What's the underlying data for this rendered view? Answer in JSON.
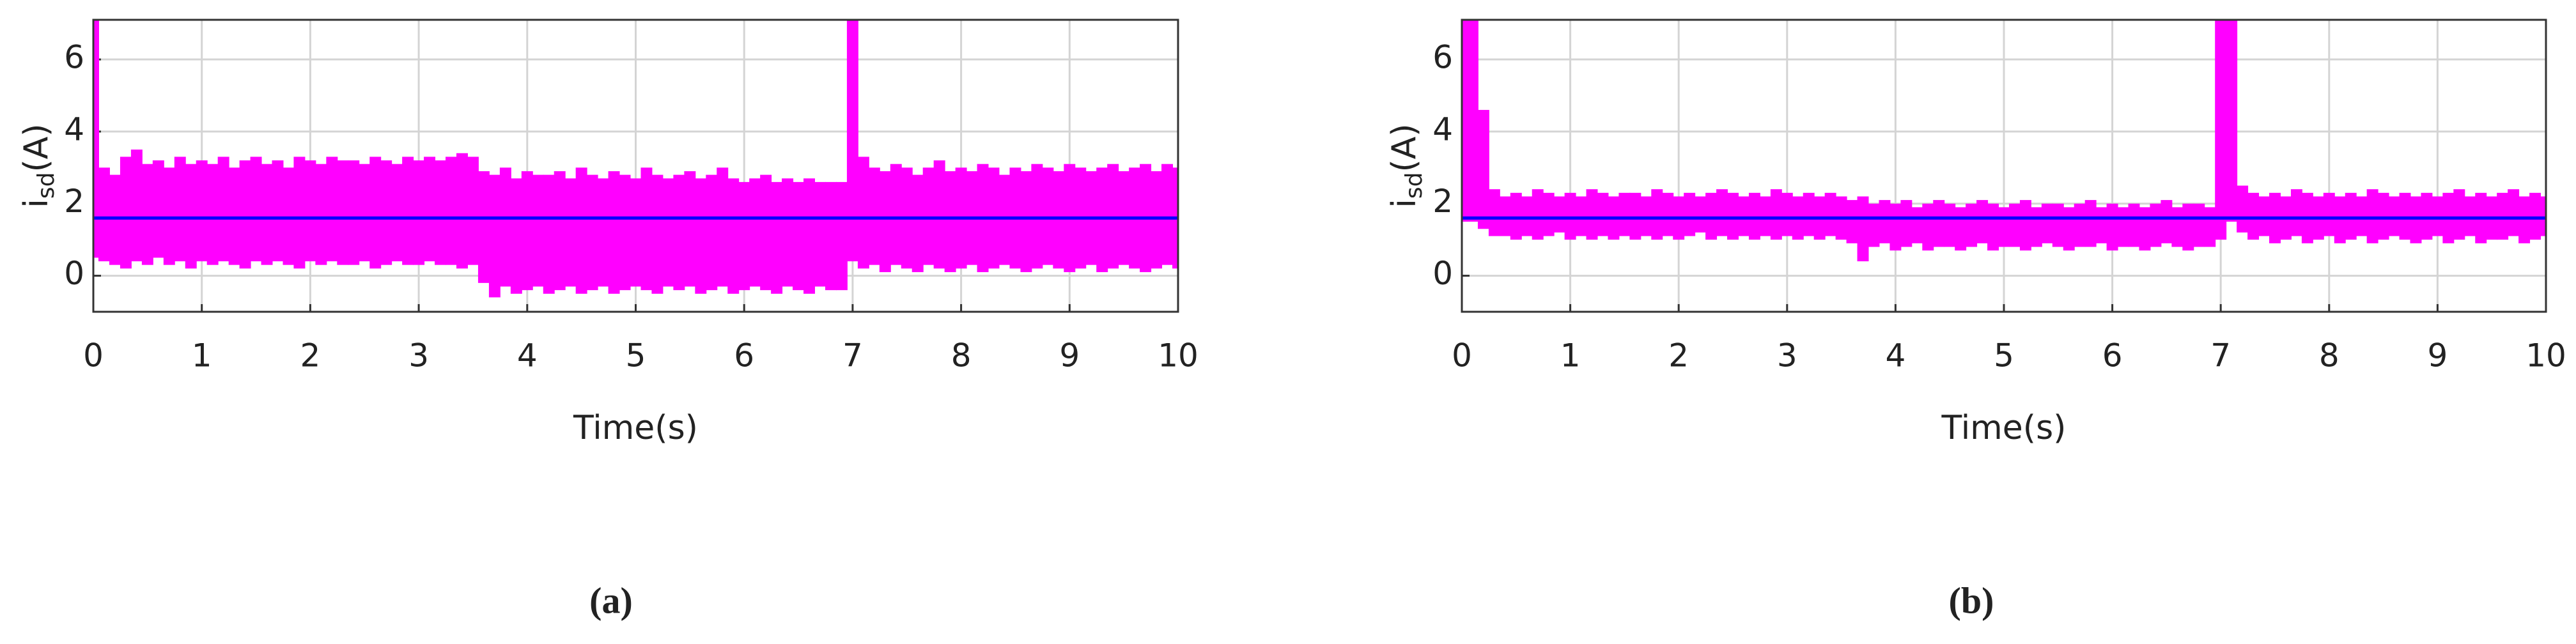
{
  "chart_data": [
    {
      "type": "line",
      "xlabel": "Time(s)",
      "ylabel": {
        "main": "i",
        "sub": "sd",
        "unit": "(A)"
      },
      "caption": "(a)",
      "xlim": [
        0,
        10
      ],
      "ylim": [
        -1,
        7.1
      ],
      "xticks": [
        0,
        1,
        2,
        3,
        4,
        5,
        6,
        7,
        8,
        9,
        10
      ],
      "yticks": [
        0,
        2,
        4,
        6
      ],
      "grid": true,
      "series": [
        {
          "type": "band",
          "color": "#ff00ff",
          "x": [
            0,
            0.1,
            0.2,
            0.3,
            0.4,
            0.5,
            0.6,
            0.7,
            0.8,
            0.9,
            1,
            1.1,
            1.2,
            1.3,
            1.4,
            1.5,
            1.6,
            1.7,
            1.8,
            1.9,
            2,
            2.1,
            2.2,
            2.3,
            2.4,
            2.5,
            2.6,
            2.7,
            2.8,
            2.9,
            3,
            3.1,
            3.2,
            3.3,
            3.4,
            3.5,
            3.6,
            3.7,
            3.8,
            3.9,
            4,
            4.1,
            4.2,
            4.3,
            4.4,
            4.5,
            4.6,
            4.7,
            4.8,
            4.9,
            5,
            5.1,
            5.2,
            5.3,
            5.4,
            5.5,
            5.6,
            5.7,
            5.8,
            5.9,
            6,
            6.1,
            6.2,
            6.3,
            6.4,
            6.5,
            6.6,
            6.7,
            6.8,
            6.9,
            7,
            7.1,
            7.2,
            7.3,
            7.4,
            7.5,
            7.6,
            7.7,
            7.8,
            7.9,
            8,
            8.1,
            8.2,
            8.3,
            8.4,
            8.5,
            8.6,
            8.7,
            8.8,
            8.9,
            9,
            9.1,
            9.2,
            9.3,
            9.4,
            9.5,
            9.6,
            9.7,
            9.8,
            9.9,
            10
          ],
          "upper": [
            7.1,
            3.0,
            2.8,
            3.3,
            3.5,
            3.1,
            3.2,
            3.0,
            3.3,
            3.1,
            3.2,
            3.1,
            3.3,
            3.0,
            3.2,
            3.3,
            3.1,
            3.2,
            3.0,
            3.3,
            3.2,
            3.1,
            3.3,
            3.2,
            3.2,
            3.1,
            3.3,
            3.2,
            3.1,
            3.3,
            3.2,
            3.3,
            3.2,
            3.3,
            3.4,
            3.3,
            2.9,
            2.8,
            3.0,
            2.7,
            2.9,
            2.8,
            2.8,
            2.9,
            2.7,
            3.0,
            2.8,
            2.7,
            2.9,
            2.8,
            2.7,
            3.0,
            2.8,
            2.7,
            2.8,
            2.9,
            2.7,
            2.8,
            3.0,
            2.7,
            2.6,
            2.7,
            2.8,
            2.6,
            2.7,
            2.6,
            2.7,
            2.6,
            2.6,
            2.6,
            7.1,
            3.3,
            3.0,
            2.9,
            3.1,
            3.0,
            2.8,
            3.0,
            3.2,
            2.9,
            3.0,
            2.9,
            3.1,
            3.0,
            2.8,
            3.0,
            2.9,
            3.1,
            3.0,
            2.9,
            3.1,
            3.0,
            2.9,
            3.0,
            3.1,
            2.9,
            3.0,
            3.1,
            2.9,
            3.1,
            3.0
          ],
          "lower": [
            0.5,
            0.4,
            0.3,
            0.2,
            0.4,
            0.3,
            0.5,
            0.3,
            0.4,
            0.2,
            0.4,
            0.3,
            0.4,
            0.3,
            0.2,
            0.4,
            0.3,
            0.4,
            0.3,
            0.2,
            0.4,
            0.3,
            0.4,
            0.3,
            0.3,
            0.4,
            0.2,
            0.3,
            0.4,
            0.3,
            0.3,
            0.4,
            0.3,
            0.3,
            0.2,
            0.3,
            -0.2,
            -0.6,
            -0.3,
            -0.5,
            -0.4,
            -0.3,
            -0.5,
            -0.4,
            -0.3,
            -0.5,
            -0.4,
            -0.3,
            -0.5,
            -0.4,
            -0.3,
            -0.4,
            -0.5,
            -0.3,
            -0.4,
            -0.3,
            -0.5,
            -0.4,
            -0.3,
            -0.5,
            -0.4,
            -0.3,
            -0.4,
            -0.5,
            -0.3,
            -0.4,
            -0.5,
            -0.3,
            -0.4,
            -0.4,
            0.4,
            0.2,
            0.3,
            0.1,
            0.3,
            0.2,
            0.1,
            0.3,
            0.2,
            0.1,
            0.2,
            0.3,
            0.1,
            0.2,
            0.3,
            0.2,
            0.1,
            0.2,
            0.3,
            0.2,
            0.1,
            0.2,
            0.3,
            0.1,
            0.2,
            0.3,
            0.2,
            0.1,
            0.2,
            0.3,
            0.2
          ]
        },
        {
          "color": "#0000ff",
          "x": [
            0,
            10
          ],
          "values": [
            1.6,
            1.6
          ]
        }
      ]
    },
    {
      "type": "line",
      "xlabel": "Time(s)",
      "ylabel": {
        "main": "i",
        "sub": "sd",
        "unit": "(A)"
      },
      "caption": "(b)",
      "xlim": [
        0,
        10
      ],
      "ylim": [
        -1,
        7.1
      ],
      "xticks": [
        0,
        1,
        2,
        3,
        4,
        5,
        6,
        7,
        8,
        9,
        10
      ],
      "yticks": [
        0,
        2,
        4,
        6
      ],
      "grid": true,
      "series": [
        {
          "type": "band",
          "color": "#ff00ff",
          "x": [
            0,
            0.1,
            0.2,
            0.3,
            0.4,
            0.5,
            0.6,
            0.7,
            0.8,
            0.9,
            1,
            1.1,
            1.2,
            1.3,
            1.4,
            1.5,
            1.6,
            1.7,
            1.8,
            1.9,
            2,
            2.1,
            2.2,
            2.3,
            2.4,
            2.5,
            2.6,
            2.7,
            2.8,
            2.9,
            3,
            3.1,
            3.2,
            3.3,
            3.4,
            3.5,
            3.6,
            3.7,
            3.8,
            3.9,
            4,
            4.1,
            4.2,
            4.3,
            4.4,
            4.5,
            4.6,
            4.7,
            4.8,
            4.9,
            5,
            5.1,
            5.2,
            5.3,
            5.4,
            5.5,
            5.6,
            5.7,
            5.8,
            5.9,
            6,
            6.1,
            6.2,
            6.3,
            6.4,
            6.5,
            6.6,
            6.7,
            6.8,
            6.9,
            7,
            7.1,
            7.2,
            7.3,
            7.4,
            7.5,
            7.6,
            7.7,
            7.8,
            7.9,
            8,
            8.1,
            8.2,
            8.3,
            8.4,
            8.5,
            8.6,
            8.7,
            8.8,
            8.9,
            9,
            9.1,
            9.2,
            9.3,
            9.4,
            9.5,
            9.6,
            9.7,
            9.8,
            9.9,
            10
          ],
          "upper": [
            7.1,
            7.1,
            4.6,
            2.4,
            2.2,
            2.3,
            2.2,
            2.4,
            2.3,
            2.2,
            2.3,
            2.2,
            2.4,
            2.3,
            2.2,
            2.3,
            2.3,
            2.2,
            2.4,
            2.3,
            2.2,
            2.3,
            2.2,
            2.3,
            2.4,
            2.3,
            2.2,
            2.3,
            2.2,
            2.4,
            2.3,
            2.2,
            2.3,
            2.2,
            2.3,
            2.2,
            2.1,
            2.2,
            2.0,
            2.1,
            2.0,
            2.1,
            1.9,
            2.0,
            2.1,
            2.0,
            1.9,
            2.0,
            2.1,
            2.0,
            1.9,
            2.0,
            2.1,
            1.9,
            2.0,
            2.0,
            1.9,
            2.0,
            2.1,
            1.9,
            2.0,
            1.9,
            2.0,
            1.9,
            2.0,
            2.1,
            1.9,
            2.0,
            2.0,
            1.9,
            7.1,
            7.1,
            2.5,
            2.3,
            2.2,
            2.3,
            2.2,
            2.4,
            2.3,
            2.2,
            2.3,
            2.2,
            2.3,
            2.2,
            2.4,
            2.3,
            2.2,
            2.3,
            2.2,
            2.3,
            2.2,
            2.3,
            2.4,
            2.2,
            2.3,
            2.2,
            2.3,
            2.4,
            2.2,
            2.3,
            2.2
          ],
          "lower": [
            1.5,
            1.5,
            1.3,
            1.1,
            1.1,
            1.0,
            1.1,
            1.0,
            1.1,
            1.2,
            1.0,
            1.1,
            1.0,
            1.1,
            1.0,
            1.1,
            1.0,
            1.1,
            1.0,
            1.1,
            1.0,
            1.1,
            1.2,
            1.0,
            1.1,
            1.0,
            1.1,
            1.0,
            1.1,
            1.0,
            1.1,
            1.0,
            1.1,
            1.0,
            1.1,
            1.0,
            0.9,
            0.4,
            0.8,
            0.9,
            0.7,
            0.8,
            0.9,
            0.7,
            0.8,
            0.8,
            0.7,
            0.8,
            0.9,
            0.7,
            0.8,
            0.8,
            0.7,
            0.8,
            0.9,
            0.8,
            0.7,
            0.8,
            0.8,
            0.9,
            0.7,
            0.8,
            0.8,
            0.7,
            0.8,
            0.9,
            0.8,
            0.7,
            0.8,
            0.8,
            1.0,
            1.5,
            1.2,
            1.0,
            1.1,
            0.9,
            1.0,
            1.1,
            0.9,
            1.0,
            1.1,
            0.9,
            1.0,
            1.1,
            0.9,
            1.0,
            1.1,
            1.0,
            0.9,
            1.0,
            1.1,
            0.9,
            1.0,
            1.1,
            0.9,
            1.0,
            1.0,
            1.1,
            0.9,
            1.0,
            1.1
          ]
        },
        {
          "color": "#0000ff",
          "x": [
            0,
            10
          ],
          "values": [
            1.6,
            1.6
          ]
        }
      ]
    }
  ]
}
